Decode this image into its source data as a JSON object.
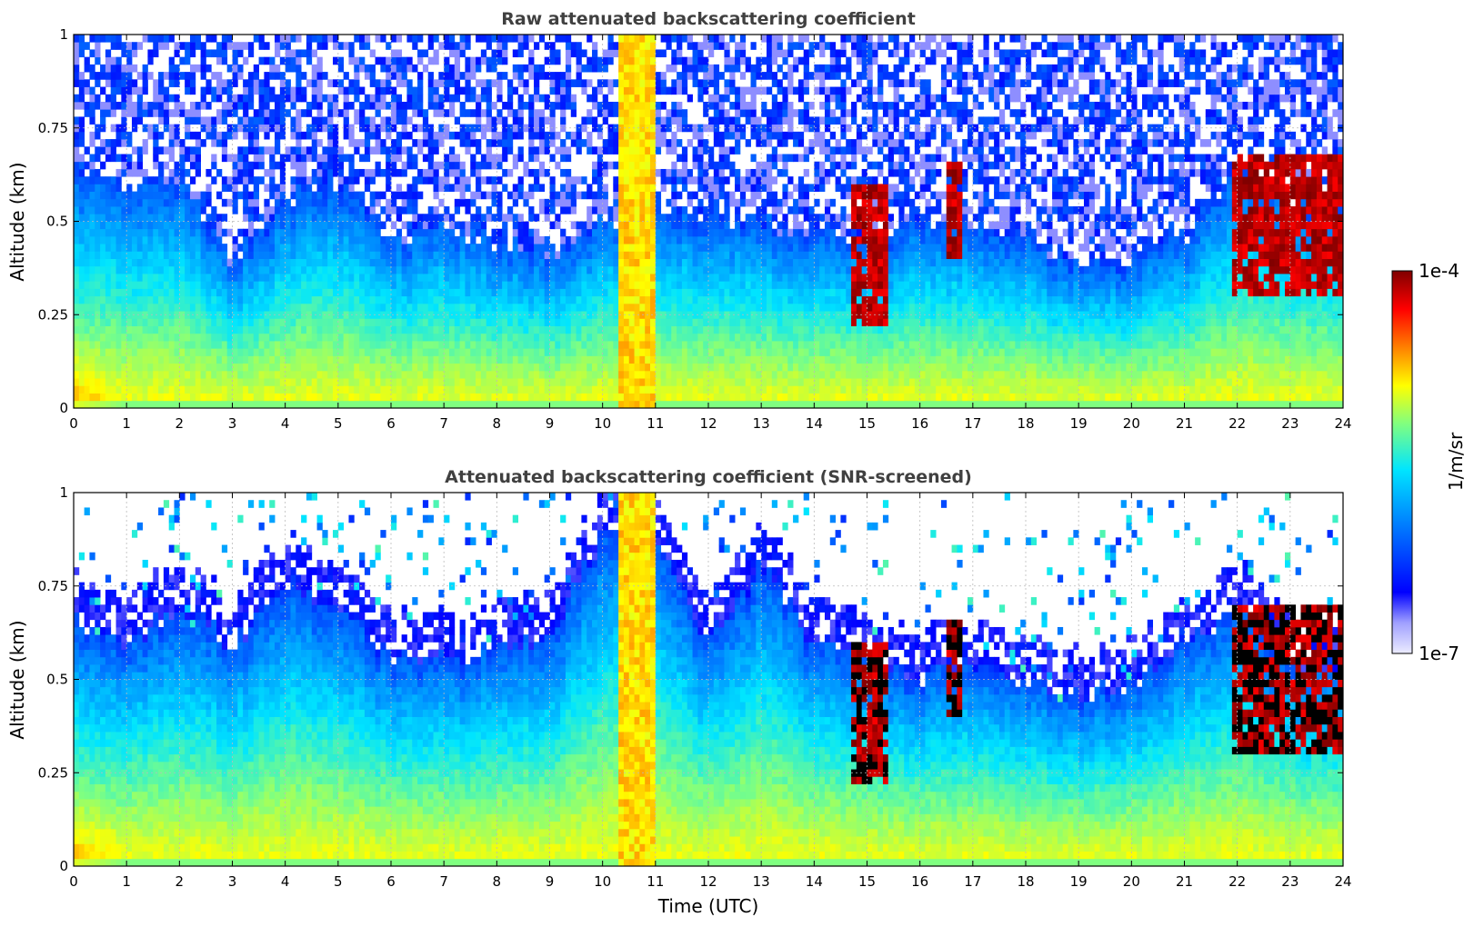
{
  "chart_data": [
    {
      "type": "heatmap",
      "title": "Raw attenuated backscattering coefficient",
      "xlabel": "",
      "ylabel": "Altitude (km)",
      "xlim": [
        0,
        24
      ],
      "ylim": [
        0,
        1
      ],
      "x_ticks": [
        "0",
        "1",
        "2",
        "3",
        "4",
        "5",
        "6",
        "7",
        "8",
        "9",
        "10",
        "11",
        "12",
        "13",
        "14",
        "15",
        "16",
        "17",
        "18",
        "19",
        "20",
        "21",
        "22",
        "23",
        "24"
      ],
      "y_ticks": [
        "0",
        "0.25",
        "0.5",
        "0.75",
        "1"
      ],
      "grid": true,
      "screened": false,
      "boundary_layer_top_km": {
        "x": [
          0,
          1,
          2,
          3,
          4,
          5,
          6,
          7,
          8,
          9,
          10,
          11,
          12,
          13,
          14,
          15,
          16,
          17,
          18,
          19,
          20,
          21,
          22,
          23,
          24
        ],
        "y": [
          0.65,
          0.6,
          0.62,
          0.4,
          0.55,
          0.6,
          0.45,
          0.5,
          0.45,
          0.4,
          0.5,
          0.55,
          0.5,
          0.5,
          0.48,
          0.45,
          0.5,
          0.5,
          0.45,
          0.38,
          0.4,
          0.45,
          0.65,
          0.55,
          0.55
        ]
      },
      "cloud_features": [
        {
          "x_range": [
            14.7,
            15.4
          ],
          "alt_km": [
            0.22,
            0.6
          ]
        },
        {
          "x_range": [
            16.5,
            16.8
          ],
          "alt_km": [
            0.4,
            0.65
          ]
        },
        {
          "x_range": [
            21.9,
            24.0
          ],
          "alt_km": [
            0.3,
            0.68
          ]
        }
      ]
    },
    {
      "type": "heatmap",
      "title": "Attenuated backscattering coefficient (SNR-screened)",
      "xlabel": "Time (UTC)",
      "ylabel": "Altitude (km)",
      "xlim": [
        0,
        24
      ],
      "ylim": [
        0,
        1
      ],
      "x_ticks": [
        "0",
        "1",
        "2",
        "3",
        "4",
        "5",
        "6",
        "7",
        "8",
        "9",
        "10",
        "11",
        "12",
        "13",
        "14",
        "15",
        "16",
        "17",
        "18",
        "19",
        "20",
        "21",
        "22",
        "23",
        "24"
      ],
      "y_ticks": [
        "0",
        "0.25",
        "0.5",
        "0.75",
        "1"
      ],
      "grid": true,
      "screened": true,
      "boundary_layer_top_km": {
        "x": [
          0,
          1,
          2,
          3,
          4,
          5,
          6,
          7,
          8,
          9,
          10,
          11,
          12,
          13,
          14,
          15,
          16,
          17,
          18,
          19,
          20,
          21,
          22,
          23,
          24
        ],
        "y": [
          0.65,
          0.6,
          0.7,
          0.6,
          0.75,
          0.7,
          0.55,
          0.55,
          0.6,
          0.6,
          0.9,
          0.9,
          0.6,
          0.8,
          0.6,
          0.55,
          0.5,
          0.55,
          0.5,
          0.45,
          0.5,
          0.6,
          0.7,
          0.55,
          0.55
        ]
      },
      "cloud_features": [
        {
          "x_range": [
            14.7,
            15.4
          ],
          "alt_km": [
            0.22,
            0.6
          ]
        },
        {
          "x_range": [
            16.5,
            16.8
          ],
          "alt_km": [
            0.4,
            0.65
          ]
        },
        {
          "x_range": [
            21.9,
            24.0
          ],
          "alt_km": [
            0.3,
            0.7
          ]
        }
      ]
    }
  ],
  "colorbar": {
    "label": "1/m/sr",
    "max_label": "1e-4",
    "min_label": "1e-7",
    "range": [
      1e-07,
      0.0001
    ],
    "scale": "log",
    "colormap": "jet",
    "stops": [
      "#ececff",
      "#0000ff",
      "#0080ff",
      "#00e5ff",
      "#80ff80",
      "#ffff00",
      "#ff8000",
      "#ff0000",
      "#800000"
    ]
  }
}
